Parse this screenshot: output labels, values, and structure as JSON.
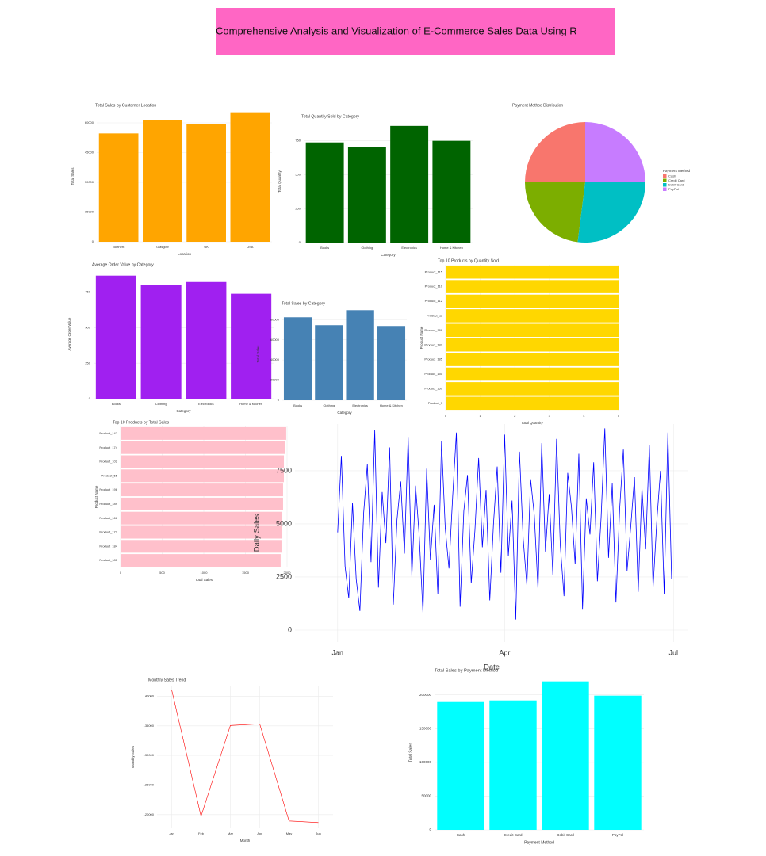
{
  "header": {
    "title": "Comprehensive Analysis and Visualization of E-Commerce Sales Data Using R"
  },
  "chart_data": [
    {
      "type": "bar",
      "title": "Total Sales by Customer Location",
      "x_label": "Location",
      "y_label": "Total Sales",
      "categories": [
        "Northern",
        "Glasgow",
        "UK",
        "USA"
      ],
      "values": [
        54658,
        61233,
        59589,
        65342
      ],
      "color": "#FFA500",
      "ylim": [
        0,
        66000
      ],
      "yticks": [
        0,
        15000,
        30000,
        45000,
        60000
      ],
      "grid": true
    },
    {
      "type": "bar",
      "title": "Total Quantity Sold by Category",
      "x_label": "Category",
      "y_label": "Total Quantity",
      "categories": [
        "Books",
        "Clothing",
        "Electronics",
        "Home & Kitchen"
      ],
      "values": [
        738,
        703,
        860,
        750
      ],
      "color": "#006400",
      "ylim": [
        0,
        900
      ],
      "yticks": [
        0,
        250,
        500,
        750
      ],
      "grid": true
    },
    {
      "type": "pie",
      "title": "Payment Method Distribution",
      "legend_title": "Payment Method",
      "categories": [
        "Cash",
        "Credit Card",
        "Debit Card",
        "PayPal"
      ],
      "values": [
        25,
        23,
        27,
        25
      ],
      "colors": [
        "#F8766D",
        "#7CAE00",
        "#00BFC4",
        "#C77CFF"
      ]
    },
    {
      "type": "bar",
      "title": "Average Order Value by Category",
      "x_label": "Category",
      "y_label": "Average Order Value",
      "categories": [
        "Books",
        "Clothing",
        "Electronics",
        "Home & Kitchen"
      ],
      "values": [
        867,
        800,
        822,
        739
      ],
      "color": "#A020F0",
      "ylim": [
        0,
        910
      ],
      "yticks": [
        0,
        250,
        500,
        750
      ],
      "grid": true
    },
    {
      "type": "bar",
      "title": "Total Sales by Category",
      "x_label": "Category",
      "y_label": "Total Sales",
      "categories": [
        "Books",
        "Clothing",
        "Electronics",
        "Home & Kitchen"
      ],
      "values": [
        82353,
        74510,
        89412,
        73725
      ],
      "color": "#4682B4",
      "ylim": [
        0,
        92000
      ],
      "yticks": [
        0,
        20000,
        40000,
        60000,
        80000
      ],
      "grid": true
    },
    {
      "type": "hbar",
      "title": "Top 10 Products by Quantity Sold",
      "x_label": "Total Quantity",
      "y_label": "Product Name",
      "categories": [
        "Product_115",
        "Product_110",
        "Product_112",
        "Product_11",
        "Product_189",
        "Product_182",
        "Product_185",
        "Product_150",
        "Product_160",
        "Product_7"
      ],
      "values": [
        5,
        5,
        5,
        5,
        5,
        5,
        5,
        5,
        5,
        5
      ],
      "color": "#FFD700",
      "xlim": [
        0,
        5
      ],
      "xticks": [
        0,
        1,
        2,
        3,
        4,
        5
      ],
      "grid": true
    },
    {
      "type": "hbar",
      "title": "Top 10 Products by Total Sales",
      "x_label": "Total Sales",
      "y_label": "Product Name",
      "categories": [
        "Product_147",
        "Product_174",
        "Product_102",
        "Product_55",
        "Product_196",
        "Product_189",
        "Product_166",
        "Product_172",
        "Product_184",
        "Product_181"
      ],
      "values": [
        1990,
        1981,
        1962,
        1962,
        1952,
        1952,
        1943,
        1943,
        1933,
        1923
      ],
      "color": "#FFC0CB",
      "xlim": [
        0,
        2000
      ],
      "xticks": [
        0,
        500,
        1000,
        1500,
        2000
      ],
      "grid": true
    },
    {
      "type": "line",
      "x_label": "Date",
      "y_label": "Daily Sales",
      "color": "#0000FF",
      "x": [
        0,
        2,
        4,
        6,
        8,
        10,
        12,
        14,
        16,
        18,
        20,
        22,
        24,
        26,
        28,
        30,
        32,
        34,
        36,
        38,
        40,
        42,
        44,
        46,
        48,
        50,
        52,
        54,
        56,
        58,
        60,
        62,
        64,
        66,
        68,
        70,
        72,
        74,
        76,
        78,
        80,
        82,
        84,
        86,
        88,
        90,
        92,
        94,
        96,
        98,
        100,
        102,
        104,
        106,
        108,
        110,
        112,
        114,
        116,
        118,
        120,
        122,
        124,
        126,
        128,
        130,
        132,
        134,
        136,
        138,
        140,
        142,
        144,
        146,
        148,
        150,
        152,
        154,
        156,
        158,
        160,
        162,
        164,
        166,
        168,
        170,
        172,
        174,
        176,
        178,
        180
      ],
      "values": [
        4600,
        8200,
        3000,
        1500,
        6000,
        2400,
        900,
        5500,
        7800,
        3200,
        9400,
        2000,
        6500,
        4100,
        8600,
        1200,
        5200,
        7000,
        3600,
        9100,
        2500,
        6800,
        4400,
        800,
        7600,
        3300,
        5900,
        1700,
        8900,
        4800,
        2900,
        6300,
        9300,
        1100,
        5600,
        7300,
        2200,
        4700,
        8100,
        3900,
        6600,
        1400,
        5000,
        7700,
        2700,
        9200,
        3500,
        6100,
        500,
        8400,
        4300,
        2100,
        7100,
        5400,
        1900,
        8800,
        3700,
        6400,
        2600,
        9000,
        4000,
        1600,
        7400,
        5800,
        3100,
        8300,
        1000,
        6200,
        4500,
        7900,
        2300,
        5300,
        9500,
        3400,
        6900,
        1300,
        5700,
        8500,
        2800,
        4900,
        7200,
        1800,
        6700,
        3800,
        8700,
        2000,
        5100,
        7500,
        1700,
        9300,
        2400
      ],
      "xlim": [
        -23,
        189
      ],
      "xticks": [
        {
          "value": 0,
          "label": "Jan"
        },
        {
          "value": 90,
          "label": "Apr"
        },
        {
          "value": 181,
          "label": "Jul"
        }
      ],
      "ylim": [
        -560,
        9700
      ],
      "yticks": [
        0,
        2500,
        5000,
        7500
      ],
      "grid": true
    },
    {
      "type": "line",
      "title": "Monthly Sales Trend",
      "x_label": "Month",
      "y_label": "Monthly Sales",
      "color": "#FF0000",
      "categories": [
        "Jan",
        "Feb",
        "Mar",
        "Apr",
        "May",
        "Jun"
      ],
      "values": [
        141067,
        119733,
        135067,
        135333,
        118933,
        118667
      ],
      "ylim": [
        117700,
        141800
      ],
      "yticks": [
        120000,
        125000,
        130000,
        135000,
        140000
      ],
      "grid": true
    },
    {
      "type": "bar",
      "title": "Total Sales by Payment Method",
      "x_label": "Payment Method",
      "y_label": "Total Sales",
      "categories": [
        "Cash",
        "Credit Card",
        "Debit Card",
        "PayPal"
      ],
      "values": [
        189412,
        191765,
        220000,
        198824
      ],
      "color": "#00FFFF",
      "ylim": [
        0,
        229000
      ],
      "yticks": [
        0,
        50000,
        100000,
        150000,
        200000
      ],
      "grid": true
    }
  ]
}
